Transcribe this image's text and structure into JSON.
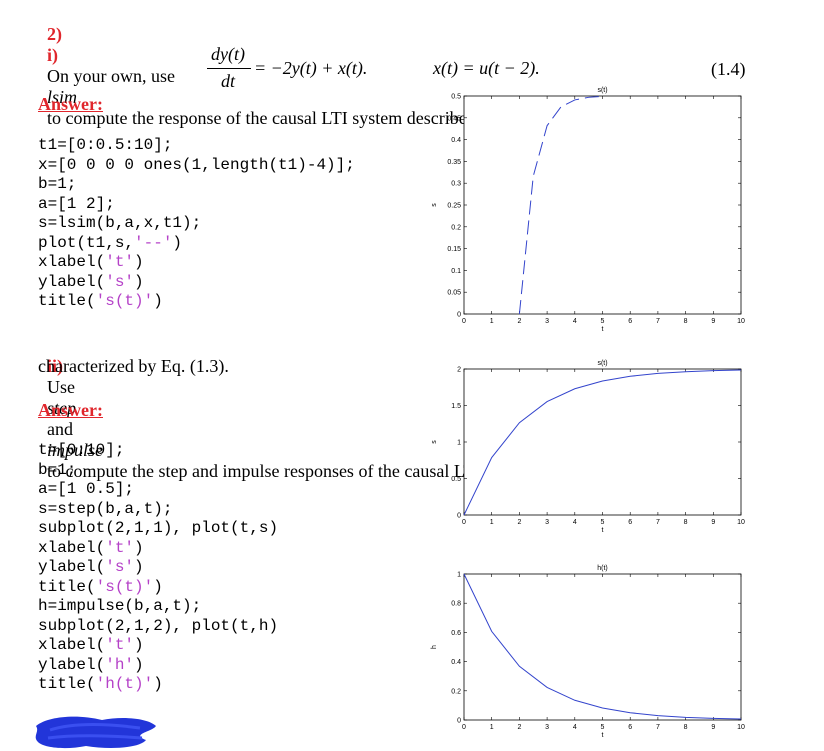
{
  "q2": {
    "number": "2)",
    "part_i_label": "i)",
    "part_i_text_a": "On your own, use",
    "part_i_cmd": "lsim",
    "part_i_text_b": "to compute the response of the causal LTI system described by",
    "eq_lhs_num": "dy(t)",
    "eq_lhs_den": "dt",
    "eq_rhs": "= −2y(t) + x(t).",
    "eq_input": "x(t) = u(t − 2).",
    "eq_number": "(1.4)",
    "answer_label": "Answer:",
    "code_i": [
      "t1=[0:0.5:10];",
      "x=[0 0 0 0 ones(1,length(t1)-4)];",
      "b=1;",
      "a=[1 2];",
      "s=lsim(b,a,x,t1);",
      "plot(t1,s,'--')",
      "xlabel('t')",
      "ylabel('s')",
      "title('s(t)')"
    ],
    "part_ii_label": "ii)",
    "part_ii_text_a": "Use",
    "part_ii_cmd1": "step",
    "part_ii_text_b": "and",
    "part_ii_cmd2": "impulse",
    "part_ii_text_c": "to compute the step and impulse responses of the causal LTI system",
    "part_ii_text_d": "characterized by Eq. (1.3).",
    "answer_label_2": "Answer:",
    "code_ii": [
      "t=[0:10];",
      "b=1;",
      "a=[1 0.5];",
      "s=step(b,a,t);",
      "subplot(2,1,1), plot(t,s)",
      "xlabel('t')",
      "ylabel('s')",
      "title('s(t)')",
      "h=impulse(b,a,t);",
      "subplot(2,1,2), plot(t,h)",
      "xlabel('t')",
      "ylabel('h')",
      "title('h(t)')"
    ]
  },
  "chart_data": [
    {
      "type": "line",
      "title": "s(t)",
      "xlabel": "t",
      "ylabel": "s",
      "xlim": [
        0,
        10
      ],
      "ylim": [
        0,
        0.5
      ],
      "xticks": [
        "0",
        "1",
        "2",
        "3",
        "4",
        "5",
        "6",
        "7",
        "8",
        "9",
        "10"
      ],
      "yticks": [
        "0",
        "0.05",
        "0.1",
        "0.15",
        "0.2",
        "0.25",
        "0.3",
        "0.35",
        "0.4",
        "0.45",
        "0.5"
      ],
      "line_style": "dashed",
      "color": "#3344cc",
      "x": [
        2,
        2.5,
        3,
        3.5,
        4,
        4.5,
        5
      ],
      "values": [
        0,
        0.316,
        0.432,
        0.475,
        0.491,
        0.497,
        0.499
      ]
    },
    {
      "type": "line",
      "title": "s(t)",
      "xlabel": "t",
      "ylabel": "s",
      "xlim": [
        0,
        10
      ],
      "ylim": [
        0,
        2
      ],
      "xticks": [
        "0",
        "1",
        "2",
        "3",
        "4",
        "5",
        "6",
        "7",
        "8",
        "9",
        "10"
      ],
      "yticks": [
        "0",
        "0.5",
        "1",
        "1.5",
        "2"
      ],
      "color": "#3344cc",
      "x": [
        0,
        1,
        2,
        3,
        4,
        5,
        6,
        7,
        8,
        9,
        10
      ],
      "values": [
        0,
        0.787,
        1.264,
        1.554,
        1.729,
        1.836,
        1.9,
        1.94,
        1.963,
        1.978,
        1.987
      ]
    },
    {
      "type": "line",
      "title": "h(t)",
      "xlabel": "t",
      "ylabel": "h",
      "xlim": [
        0,
        10
      ],
      "ylim": [
        0,
        1
      ],
      "xticks": [
        "0",
        "1",
        "2",
        "3",
        "4",
        "5",
        "6",
        "7",
        "8",
        "9",
        "10"
      ],
      "yticks": [
        "0",
        "0.2",
        "0.4",
        "0.6",
        "0.8",
        "1"
      ],
      "color": "#3344cc",
      "x": [
        0,
        1,
        2,
        3,
        4,
        5,
        6,
        7,
        8,
        9,
        10
      ],
      "values": [
        1,
        0.607,
        0.368,
        0.223,
        0.135,
        0.082,
        0.05,
        0.03,
        0.018,
        0.011,
        0.007
      ]
    }
  ]
}
